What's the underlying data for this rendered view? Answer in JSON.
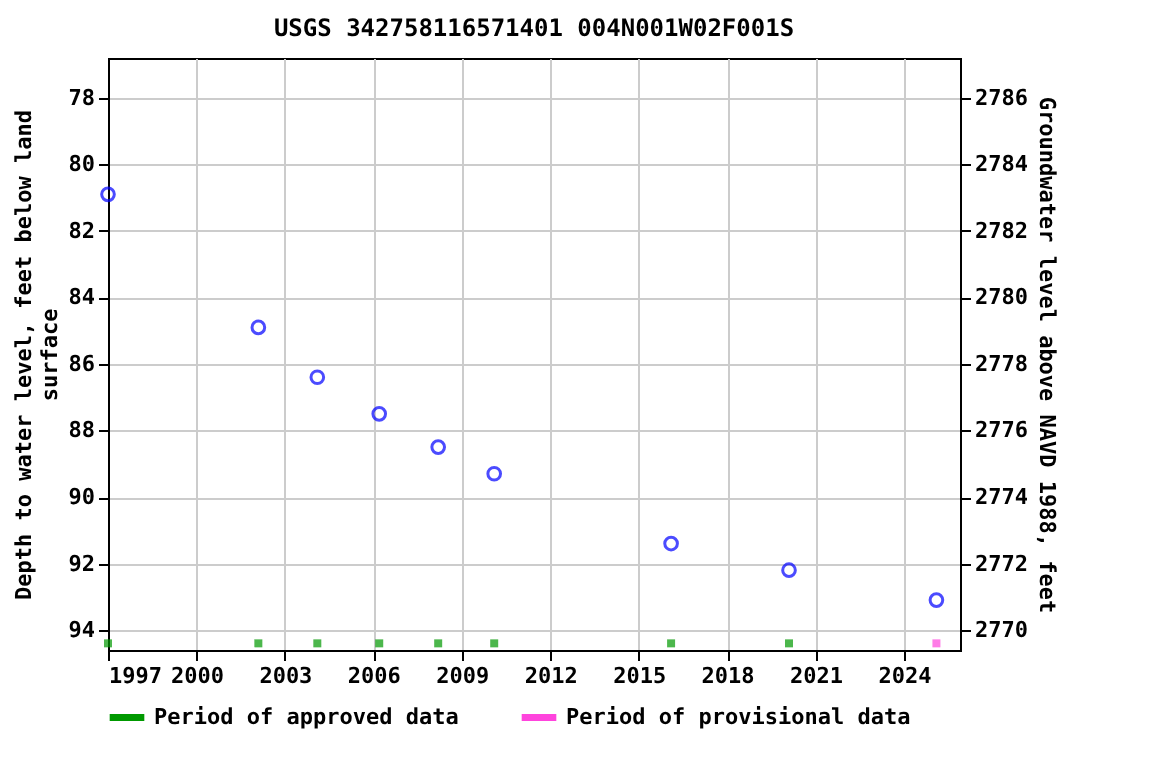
{
  "chart_data": {
    "type": "scatter",
    "title": "USGS 342758116571401 004N001W02F001S",
    "xlabel": null,
    "ylabel": "Depth to water level, feet below land surface",
    "y2label": "Groundwater level above NAVD 1988, feet",
    "series": [
      {
        "color": "#0000ff",
        "marker": "circle",
        "x": [
          1997.0,
          2002.1,
          2004.1,
          2006.2,
          2008.2,
          2010.1,
          2016.1,
          2020.1,
          2025.1
        ],
        "values": [
          80.9,
          84.9,
          86.4,
          87.5,
          88.5,
          89.3,
          91.4,
          92.2,
          93.1
        ]
      },
      {
        "name": "Period of approved data",
        "color": "#009900",
        "marker": "square",
        "x": [
          1997.0,
          2002.1,
          2004.1,
          2006.2,
          2008.2,
          2010.1,
          2016.1,
          2020.1
        ],
        "values": [
          94.4,
          94.4,
          94.4,
          94.4,
          94.4,
          94.4,
          94.4,
          94.4
        ]
      },
      {
        "name": "Period of provisional data",
        "color": "#ff44dd",
        "marker": "square",
        "x": [
          2025.1
        ],
        "values": [
          94.4
        ]
      }
    ],
    "xlim": [
      1997,
      2025.9
    ],
    "xticks": [
      1997,
      2000,
      2003,
      2006,
      2009,
      2012,
      2015,
      2018,
      2021,
      2024
    ],
    "ylim": [
      94.6,
      76.8
    ],
    "yticks": [
      78,
      80,
      82,
      84,
      86,
      88,
      90,
      92,
      94
    ],
    "y2lim": [
      2769.4,
      2787.2
    ],
    "y2ticks": [
      2770,
      2772,
      2774,
      2776,
      2778,
      2780,
      2782,
      2784,
      2786
    ],
    "grid": true,
    "legend": "bottom"
  }
}
